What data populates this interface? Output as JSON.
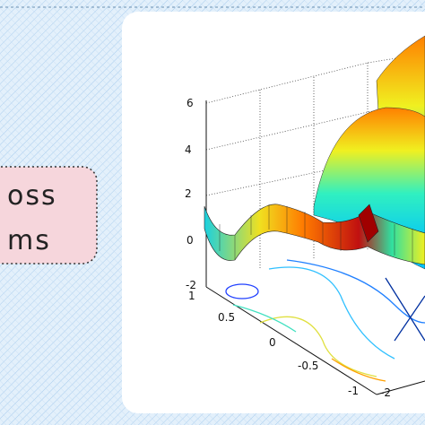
{
  "slide": {
    "label_lines": [
      "oss",
      "ms"
    ]
  },
  "plot": {
    "z_ticks": [
      "6",
      "4",
      "2",
      "0",
      "-2"
    ],
    "y_ticks": [
      "1",
      "0.5",
      "0",
      "-0.5",
      "-1"
    ],
    "x_ticks": [
      "-2"
    ]
  }
}
